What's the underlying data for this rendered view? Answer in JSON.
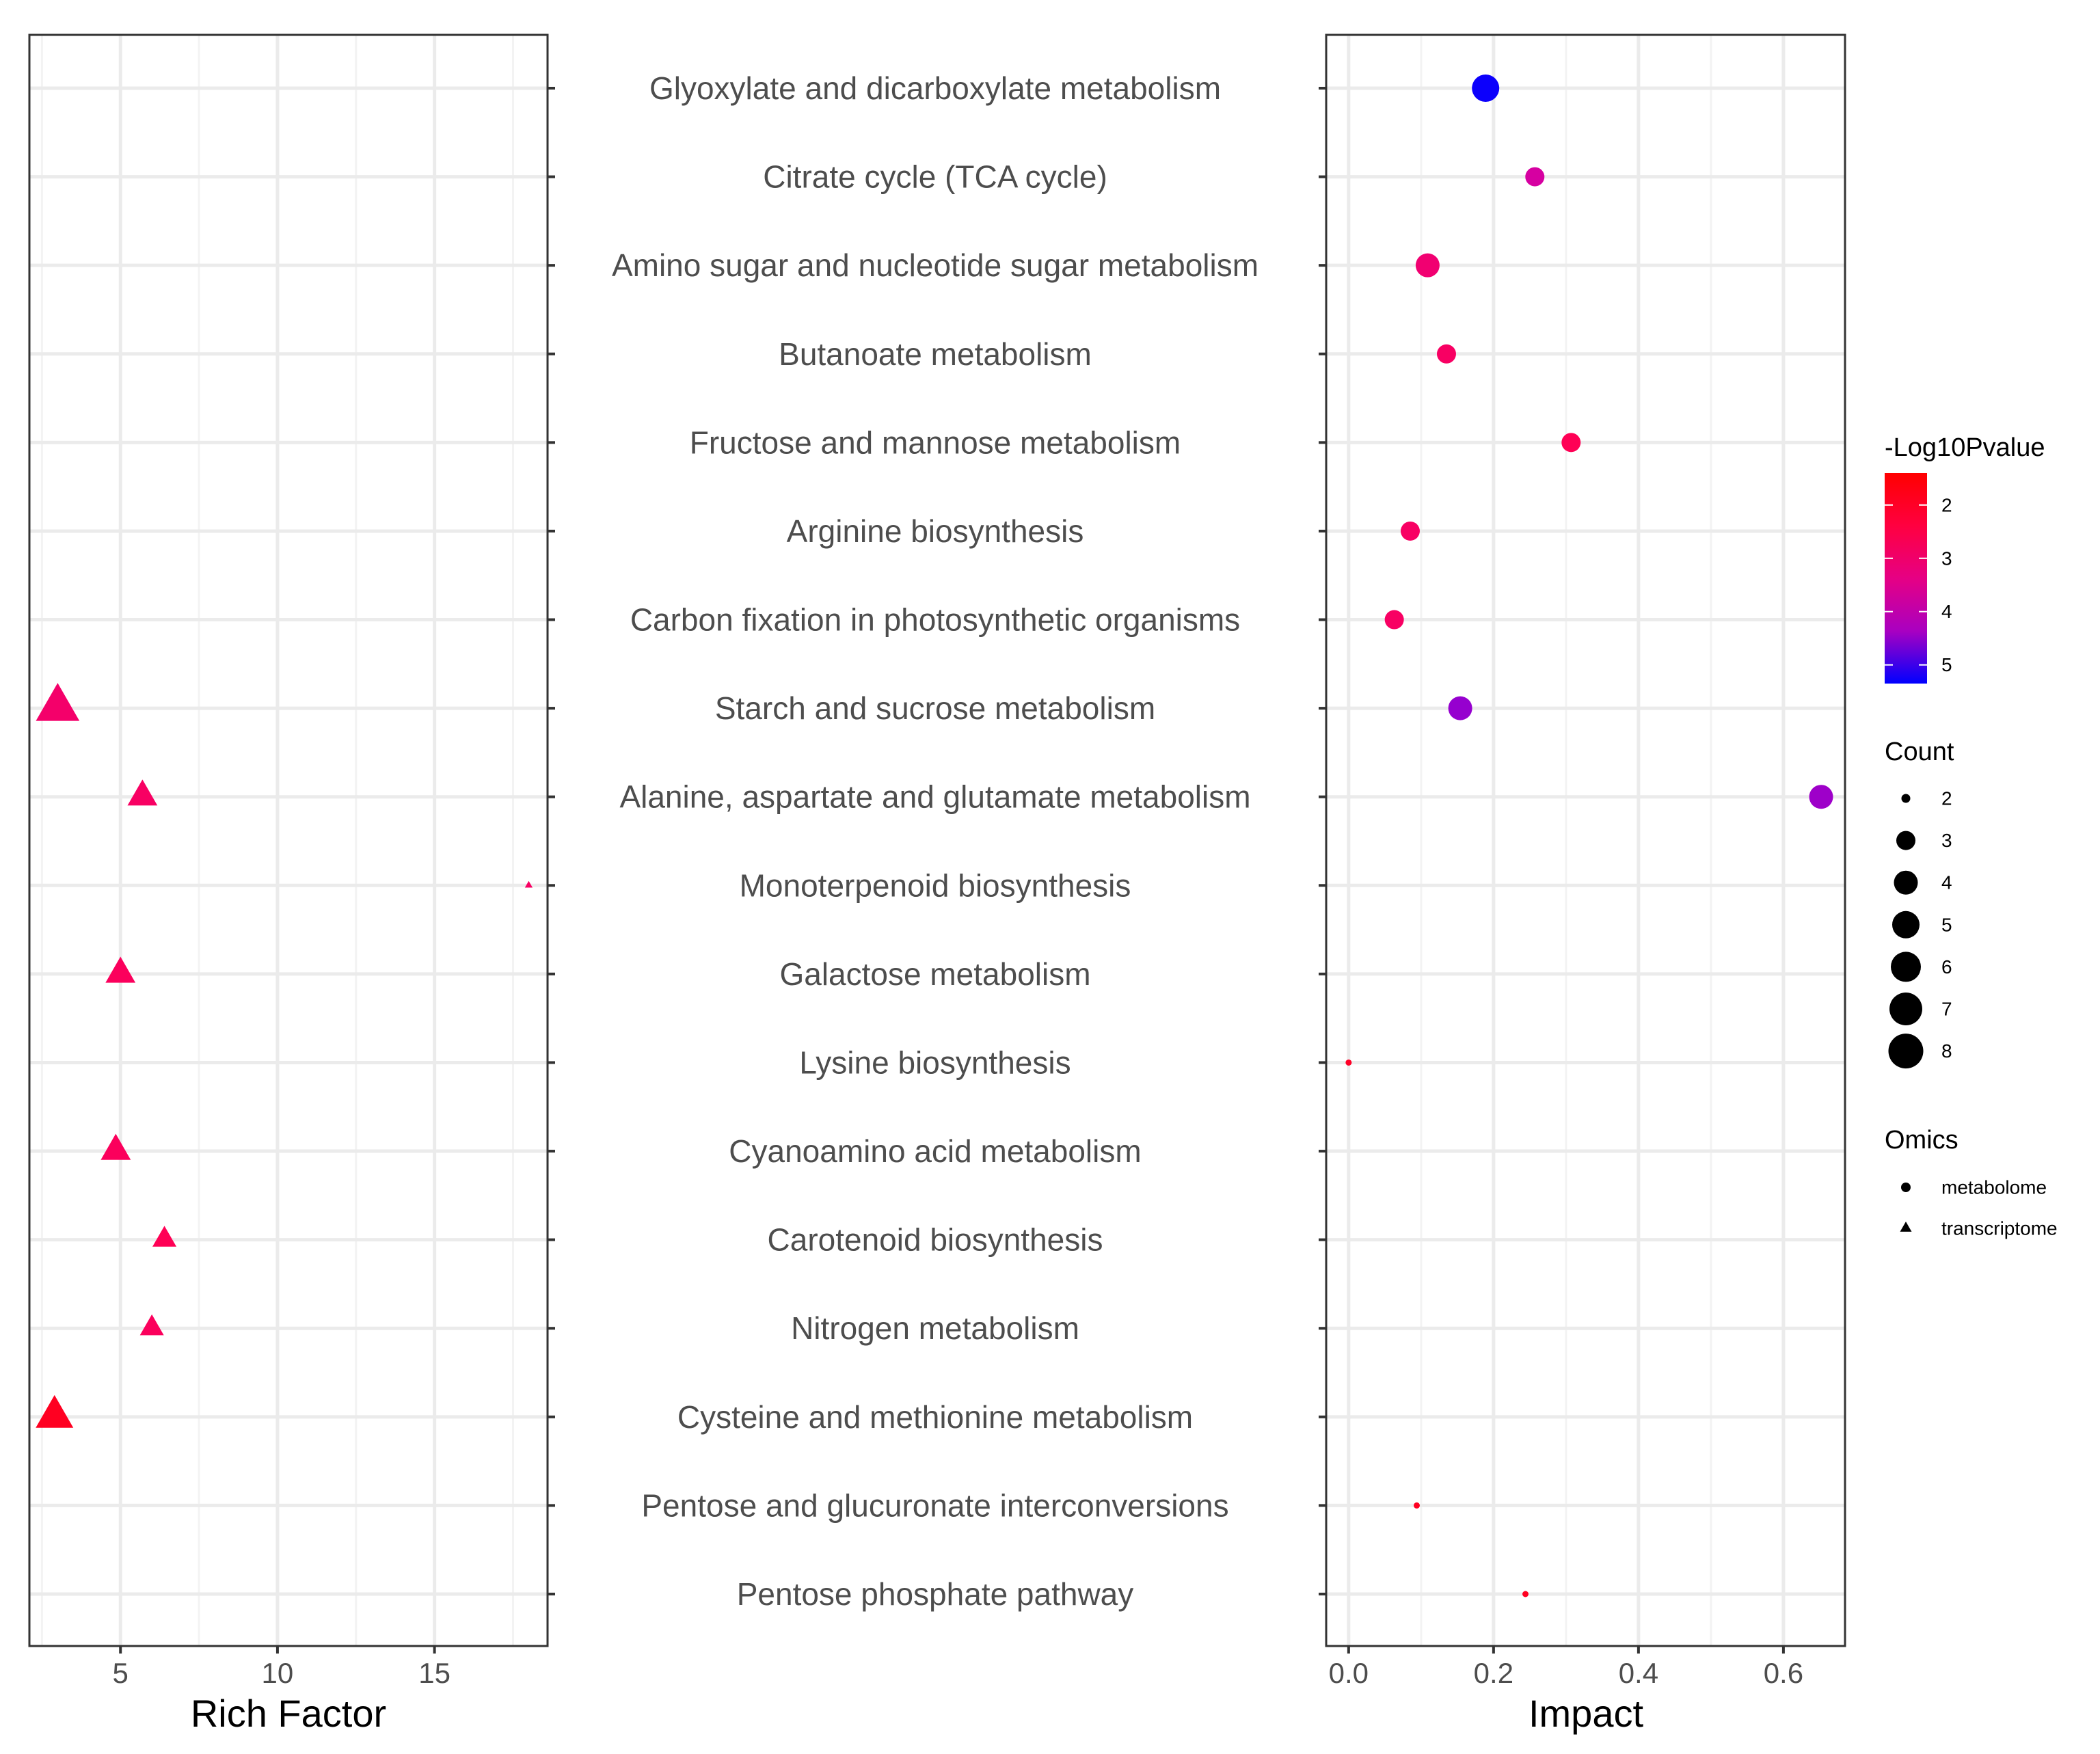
{
  "chart_data": [
    {
      "type": "scatter",
      "panel": "left",
      "xlabel": "Rich Factor",
      "xlim": [
        2.1,
        18.6
      ],
      "xticks": [
        5,
        10,
        15
      ],
      "xtick_labels": [
        "5",
        "10",
        "15"
      ],
      "grid": true,
      "points": [
        {
          "pathway": "Starch and sucrose metabolism",
          "x": 3.0,
          "count": 8,
          "neglog10p": 3.0,
          "omics": "transcriptome"
        },
        {
          "pathway": "Alanine, aspartate and glutamate metabolism",
          "x": 5.7,
          "count": 4,
          "neglog10p": 2.9,
          "omics": "transcriptome"
        },
        {
          "pathway": "Monoterpenoid biosynthesis",
          "x": 18.0,
          "count": 1,
          "neglog10p": 2.9,
          "omics": "transcriptome"
        },
        {
          "pathway": "Galactose metabolism",
          "x": 5.0,
          "count": 4,
          "neglog10p": 2.8,
          "omics": "transcriptome"
        },
        {
          "pathway": "Cyanoamino acid metabolism",
          "x": 4.85,
          "count": 4,
          "neglog10p": 2.8,
          "omics": "transcriptome"
        },
        {
          "pathway": "Carotenoid biosynthesis",
          "x": 6.4,
          "count": 3,
          "neglog10p": 2.7,
          "omics": "transcriptome"
        },
        {
          "pathway": "Nitrogen metabolism",
          "x": 6.0,
          "count": 3,
          "neglog10p": 2.8,
          "omics": "transcriptome"
        },
        {
          "pathway": "Cysteine and methionine metabolism",
          "x": 2.9,
          "count": 6,
          "neglog10p": 1.9,
          "omics": "transcriptome"
        }
      ]
    },
    {
      "type": "scatter",
      "panel": "right",
      "xlabel": "Impact",
      "xlim": [
        -0.031,
        0.685
      ],
      "xticks": [
        0.0,
        0.2,
        0.4,
        0.6
      ],
      "xtick_labels": [
        "0.0",
        "0.2",
        "0.4",
        "0.6"
      ],
      "grid": true,
      "points": [
        {
          "pathway": "Glyoxylate and dicarboxylate metabolism",
          "x": 0.189,
          "count": 5,
          "neglog10p": 5.3,
          "omics": "metabolome"
        },
        {
          "pathway": "Citrate cycle (TCA cycle)",
          "x": 0.257,
          "count": 3,
          "neglog10p": 3.8,
          "omics": "metabolome"
        },
        {
          "pathway": "Amino sugar and nucleotide sugar metabolism",
          "x": 0.109,
          "count": 4,
          "neglog10p": 3.1,
          "omics": "metabolome"
        },
        {
          "pathway": "Butanoate metabolism",
          "x": 0.135,
          "count": 3,
          "neglog10p": 2.9,
          "omics": "metabolome"
        },
        {
          "pathway": "Fructose and mannose metabolism",
          "x": 0.307,
          "count": 3,
          "neglog10p": 2.7,
          "omics": "metabolome"
        },
        {
          "pathway": "Arginine biosynthesis",
          "x": 0.085,
          "count": 3,
          "neglog10p": 2.9,
          "omics": "metabolome"
        },
        {
          "pathway": "Carbon fixation in photosynthetic organisms",
          "x": 0.063,
          "count": 3,
          "neglog10p": 2.9,
          "omics": "metabolome"
        },
        {
          "pathway": "Starch and sucrose metabolism",
          "x": 0.154,
          "count": 4,
          "neglog10p": 4.6,
          "omics": "metabolome"
        },
        {
          "pathway": "Alanine, aspartate and glutamate metabolism",
          "x": 0.652,
          "count": 4,
          "neglog10p": 4.5,
          "omics": "metabolome"
        },
        {
          "pathway": "Lysine biosynthesis",
          "x": 0.0,
          "count": 1,
          "neglog10p": 2.0,
          "omics": "metabolome"
        },
        {
          "pathway": "Pentose and glucuronate interconversions",
          "x": 0.094,
          "count": 1,
          "neglog10p": 1.9,
          "omics": "metabolome"
        },
        {
          "pathway": "Pentose phosphate pathway",
          "x": 0.244,
          "count": 1,
          "neglog10p": 1.9,
          "omics": "metabolome"
        }
      ]
    }
  ],
  "categories": [
    "Glyoxylate and dicarboxylate metabolism",
    "Citrate cycle (TCA cycle)",
    "Amino sugar and nucleotide sugar metabolism",
    "Butanoate metabolism",
    "Fructose and mannose metabolism",
    "Arginine biosynthesis",
    "Carbon fixation in photosynthetic organisms",
    "Starch and sucrose metabolism",
    "Alanine, aspartate and glutamate metabolism",
    "Monoterpenoid biosynthesis",
    "Galactose metabolism",
    "Lysine biosynthesis",
    "Cyanoamino acid metabolism",
    "Carotenoid biosynthesis",
    "Nitrogen metabolism",
    "Cysteine and methionine metabolism",
    "Pentose and glucuronate interconversions",
    "Pentose phosphate pathway"
  ],
  "legend": {
    "color": {
      "title": "-Log10Pvalue",
      "range": [
        1.4,
        5.35
      ],
      "ticks": [
        "2",
        "3",
        "4",
        "5"
      ],
      "low": "#FF0000",
      "high": "#0000FF"
    },
    "count": {
      "title": "Count",
      "values": [
        "2",
        "3",
        "4",
        "5",
        "6",
        "7",
        "8"
      ]
    },
    "omics": {
      "title": "Omics",
      "items": [
        {
          "label": "metabolome",
          "shape": "circle"
        },
        {
          "label": "transcriptome",
          "shape": "triangle"
        }
      ]
    },
    "placement": "right"
  }
}
